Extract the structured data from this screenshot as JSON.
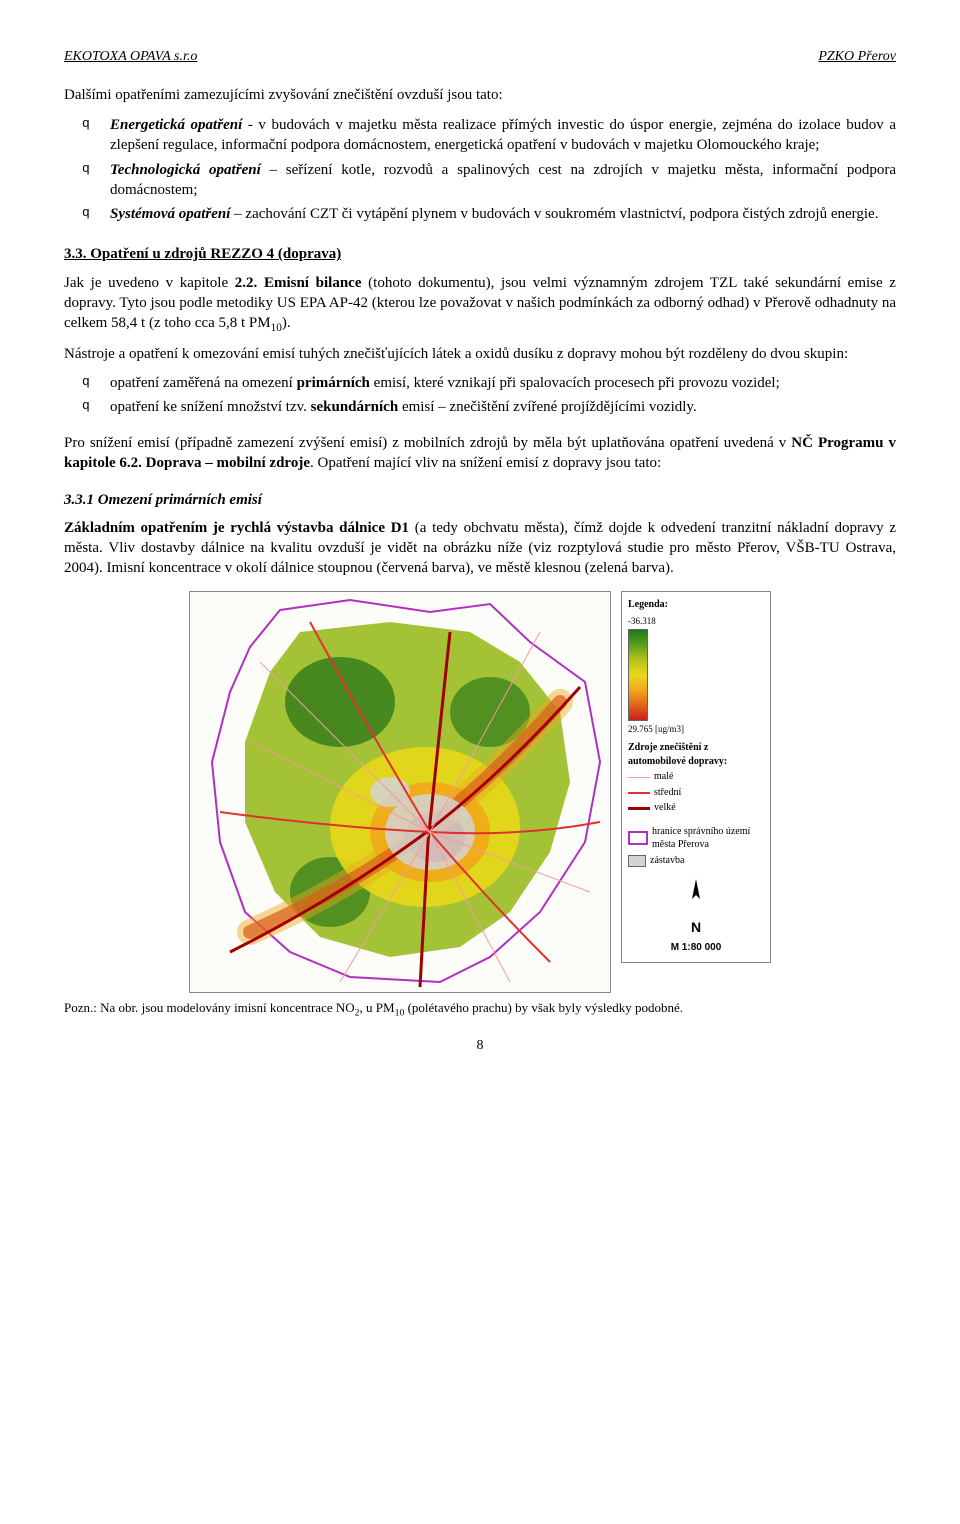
{
  "header": {
    "left": "EKOTOXA OPAVA s.r.o",
    "right": "PZKO Přerov"
  },
  "intro": "Dalšími opatřeními zamezujícími zvyšování znečištění ovzduší jsou tato:",
  "list1": [
    {
      "b": "Energetická opatření",
      "rest": " - v budovách v majetku města realizace přímých investic do úspor energie, zejména do izolace budov a zlepšení regulace, informační podpora domácnostem, energetická opatření v budovách v majetku Olomouckého kraje;"
    },
    {
      "b": "Technologická opatření",
      "rest": " – seřízení kotle, rozvodů a spalinových cest na zdrojích v majetku města, informační podpora domácnostem;"
    },
    {
      "b": "Systémová opatření",
      "rest": " – zachování CZT či vytápění plynem v budovách v soukromém vlastnictví, podpora čistých zdrojů energie."
    }
  ],
  "sec33_title": "3.3. Opatření u zdrojů REZZO 4 (doprava)",
  "p_emise1a": "Jak je uvedeno v kapitole ",
  "p_emise1b": "2.2. Emisní bilance",
  "p_emise1c": " (tohoto dokumentu), jsou velmi významným zdrojem TZL také sekundární emise z dopravy. Tyto jsou podle metodiky US EPA AP-42 (kterou lze považovat v našich podmínkách za odborný odhad) v Přerově odhadnuty na celkem 58,4 t (z toho cca 5,8 t PM",
  "p_emise1d": ").",
  "p_tools_intro": "Nástroje a opatření k omezování emisí tuhých znečišťujících látek a oxidů dusíku z dopravy mohou být rozděleny do dvou skupin:",
  "list2": [
    {
      "pre": "opatření zaměřená na omezení ",
      "bold": "primárních",
      "post": " emisí, které vznikají při spalovacích procesech při provozu vozidel;"
    },
    {
      "pre": "opatření ke snížení množství tzv. ",
      "bold": "sekundárních",
      "post": " emisí – znečištění zvířené projíždějícími vozidly."
    }
  ],
  "p_snizeni_a": "Pro snížení emisí (případně zamezení zvýšení emisí) z mobilních zdrojů by měla být uplatňována opatření uvedená v ",
  "p_snizeni_b": "NČ Programu v kapitole 6.2. Doprava – mobilní zdroje",
  "p_snizeni_c": ". Opatření mající vliv na snížení emisí z dopravy jsou tato:",
  "sec331_title": "3.3.1 Omezení primárních emisí",
  "p_zaklad_a": "Základním opatřením je rychlá výstavba dálnice D1",
  "p_zaklad_b": " (a tedy obchvatu města), čímž dojde k odvedení tranzitní nákladní dopravy z města. Vliv dostavby dálnice na kvalitu ovzduší je vidět na obrázku níže (viz rozptylová studie pro město Přerov, VŠB-TU Ostrava, 2004). Imisní koncentrace v okolí dálnice stoupnou (červená barva), ve městě klesnou (zelená barva).",
  "legend": {
    "title": "Legenda:",
    "grad_min": "-36.318",
    "grad_max": "29.765 [ug/m3]",
    "grad_colors": [
      "#1a7a1a",
      "#5aa01a",
      "#b6c21a",
      "#e8d81a",
      "#f0a81a",
      "#e2641a",
      "#c8201a"
    ],
    "src_title": "Zdroje znečištění z automobilové dopravy:",
    "lines": [
      {
        "label": "malé",
        "color": "#f59aa0",
        "width": 1
      },
      {
        "label": "střední",
        "color": "#e03030",
        "width": 2
      },
      {
        "label": "velké",
        "color": "#a00000",
        "width": 3
      }
    ],
    "boundary_label": "hranice správního území města Přerova",
    "boundary_color": "#b030c0",
    "zastavba_label": "zástavba",
    "zastavba_color": "#d4d4d4",
    "scale": "M 1:80 000"
  },
  "map": {
    "bg": "#fcfcf8",
    "boundary_color": "#b030c0",
    "zastavba_color": "#d4d4d4",
    "road_thin": "#f59aa0",
    "road_mid": "#e03030",
    "road_thick": "#a00000",
    "fill_green": "#9fbf2a",
    "fill_yellow": "#e8d81a",
    "fill_orange": "#f0a81a",
    "fill_red": "#c8201a",
    "fill_dkgreen": "#2f7a1a"
  },
  "caption_a": "Pozn.: Na obr. jsou modelovány imisní koncentrace NO",
  "caption_b": ", u PM",
  "caption_c": " (polétavého prachu) by však byly výsledky podobné.",
  "pagenum": "8"
}
